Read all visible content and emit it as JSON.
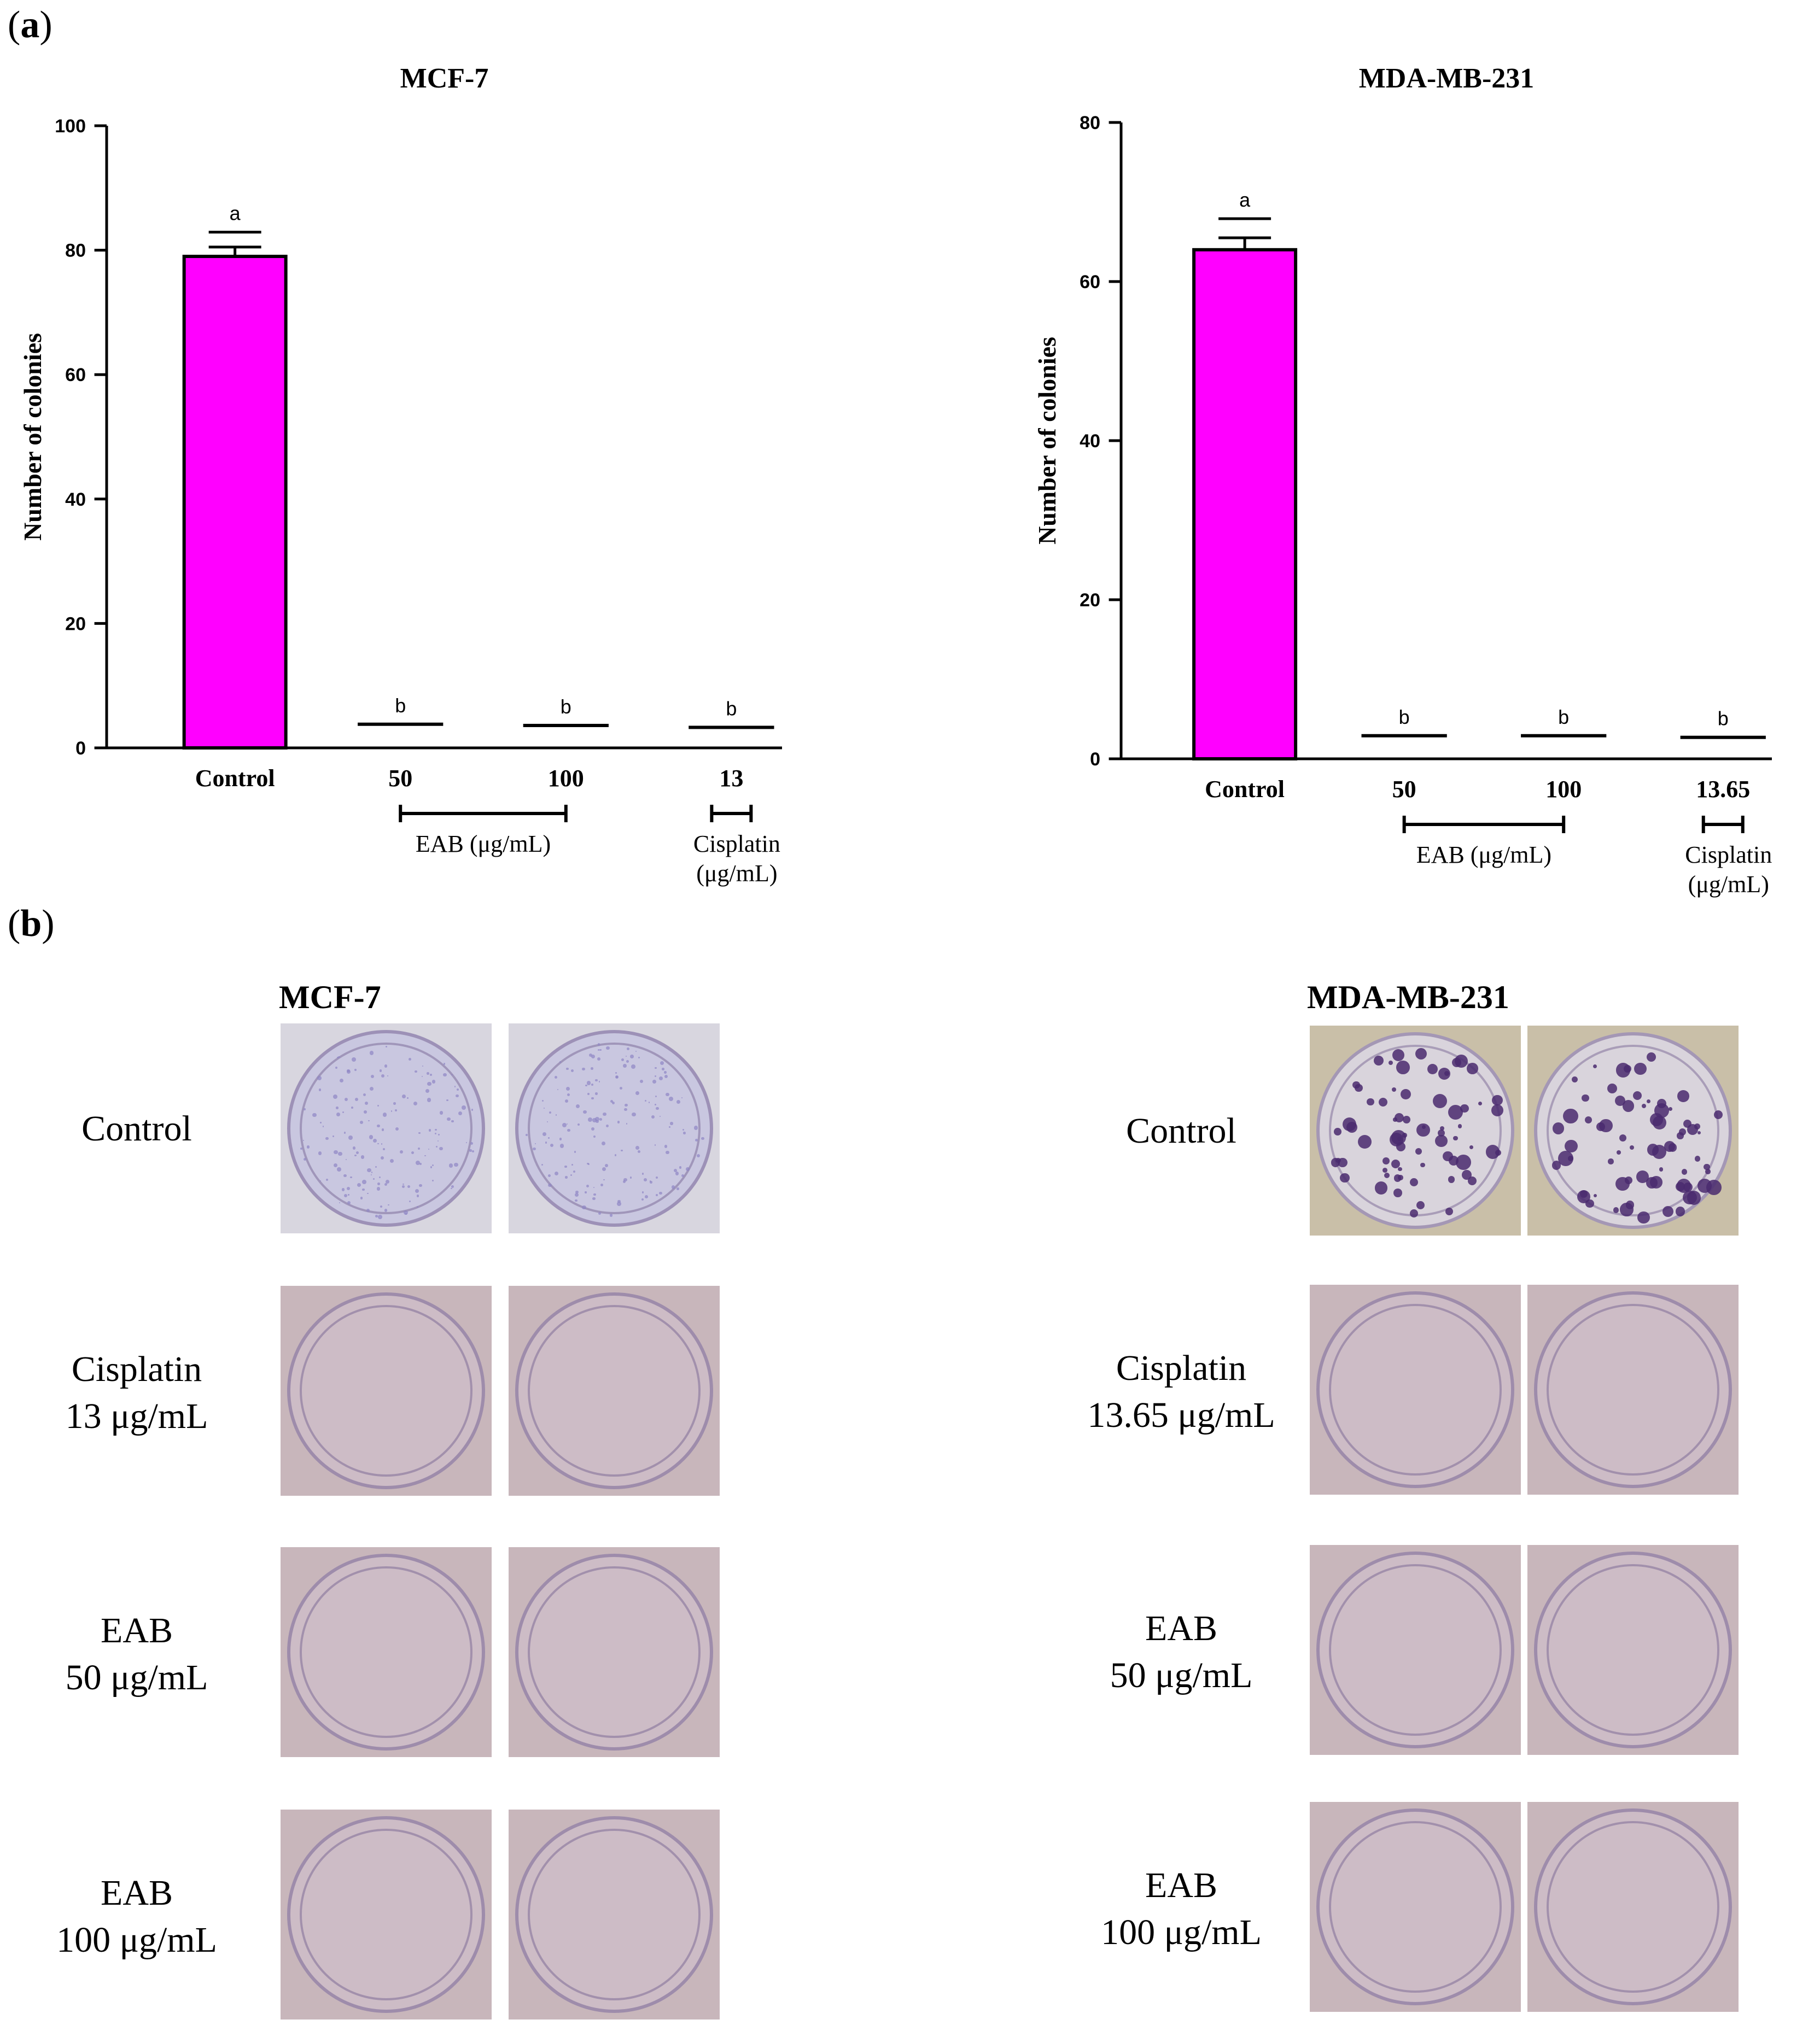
{
  "panels": {
    "a": "a",
    "b": "b"
  },
  "chart_data": [
    {
      "type": "bar",
      "title": "MCF-7",
      "ylabel": "Number of colonies",
      "ylim": [
        0,
        100
      ],
      "yticks": [
        0,
        20,
        40,
        60,
        80,
        100
      ],
      "categories": [
        "Control",
        "50",
        "100",
        "13"
      ],
      "values": [
        79,
        3.8,
        3.6,
        3.3
      ],
      "errors": [
        1.5,
        0,
        0,
        0
      ],
      "significance": [
        "a",
        "b",
        "b",
        "b"
      ],
      "bar_color": "#ff00ff",
      "groups": [
        {
          "label": "EAB (μg/mL)",
          "from": 1,
          "to": 2
        },
        {
          "label": "Cisplatin\n(μg/mL)",
          "from": 3,
          "to": 3
        }
      ]
    },
    {
      "type": "bar",
      "title": "MDA-MB-231",
      "ylabel": "Number of colonies",
      "ylim": [
        0,
        80
      ],
      "yticks": [
        0,
        20,
        40,
        60,
        80
      ],
      "categories": [
        "Control",
        "50",
        "100",
        "13.65"
      ],
      "values": [
        64,
        2.9,
        2.9,
        2.7
      ],
      "errors": [
        1.5,
        0,
        0,
        0
      ],
      "significance": [
        "a",
        "b",
        "b",
        "b"
      ],
      "bar_color": "#ff00ff",
      "groups": [
        {
          "label": "EAB (μg/mL)",
          "from": 1,
          "to": 2
        },
        {
          "label": "Cisplatin\n(μg/mL)",
          "from": 3,
          "to": 3
        }
      ]
    }
  ],
  "photos": {
    "left": {
      "title": "MCF-7",
      "rows": [
        {
          "label_line1": "Control",
          "label_line2": ""
        },
        {
          "label_line1": "Cisplatin",
          "label_line2": "13 μg/mL"
        },
        {
          "label_line1": "EAB",
          "label_line2": "50 μg/mL"
        },
        {
          "label_line1": "EAB",
          "label_line2": "100 μg/mL"
        }
      ]
    },
    "right": {
      "title": "MDA-MB-231",
      "rows": [
        {
          "label_line1": "Control",
          "label_line2": ""
        },
        {
          "label_line1": "Cisplatin",
          "label_line2": "13.65 μg/mL"
        },
        {
          "label_line1": "EAB",
          "label_line2": "50 μg/mL"
        },
        {
          "label_line1": "EAB",
          "label_line2": "100 μg/mL"
        }
      ]
    },
    "colors": {
      "control_bg_left": "#d8d6df",
      "control_bg_right": "#c9bfa8",
      "treated_bg": "#c8b6bb",
      "stain_light": "#8e86c4",
      "stain_dark": "#4a2a6e"
    }
  }
}
